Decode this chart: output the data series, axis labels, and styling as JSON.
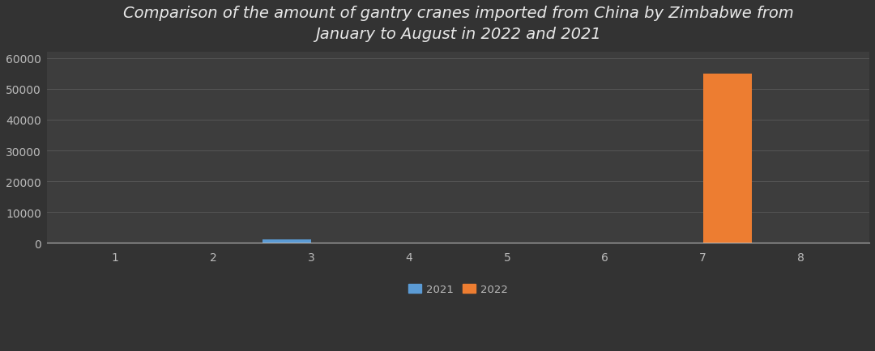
{
  "title": "Comparison of the amount of gantry cranes imported from China by Zimbabwe from\nJanuary to August in 2022 and 2021",
  "months": [
    1,
    2,
    3,
    4,
    5,
    6,
    7,
    8
  ],
  "data_2021": [
    0,
    0,
    1100,
    0,
    0,
    0,
    0,
    0
  ],
  "data_2022": [
    0,
    0,
    0,
    0,
    0,
    0,
    55000,
    0
  ],
  "color_2021": "#5B9BD5",
  "color_2022": "#ED7D31",
  "bg_top": "#2E2E2E",
  "bg_bottom": "#4A4A4A",
  "grid_color": "#606060",
  "text_color": "#E8E8E8",
  "tick_color": "#BBBBBB",
  "ylim": [
    0,
    62000
  ],
  "yticks": [
    0,
    10000,
    20000,
    30000,
    40000,
    50000,
    60000
  ],
  "bar_width": 0.5,
  "legend_labels": [
    "2021",
    "2022"
  ],
  "title_fontsize": 14,
  "tick_fontsize": 10,
  "xlim": [
    0.3,
    8.7
  ]
}
